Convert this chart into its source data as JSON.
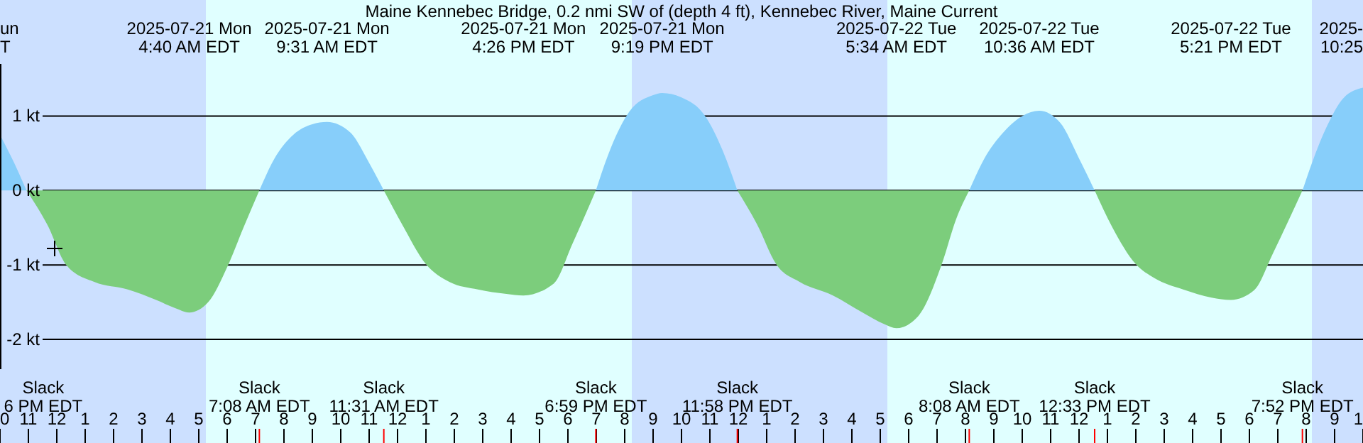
{
  "chart_data": {
    "type": "area",
    "title": "Maine Kennebec Bridge, 0.2 nmi SW of (depth 4 ft), Kennebec River, Maine Current",
    "xlim": [
      "2025-07-20T22:00",
      "2025-07-22T22:00"
    ],
    "ylim": [
      -2.4,
      1.7
    ],
    "yticks": [
      {
        "value": 1,
        "label": "1 kt"
      },
      {
        "value": 0,
        "label": "0 kt"
      },
      {
        "value": -1,
        "label": "-1 kt"
      },
      {
        "value": -2,
        "label": "-2 kt"
      }
    ],
    "xticks": [
      {
        "value": "2025-07-20T22:00",
        "label": "0"
      },
      {
        "value": "2025-07-20T23:00",
        "label": "11"
      },
      {
        "value": "2025-07-21T00:00",
        "label": "12"
      },
      {
        "value": "2025-07-21T01:00",
        "label": "1"
      },
      {
        "value": "2025-07-21T02:00",
        "label": "2"
      },
      {
        "value": "2025-07-21T03:00",
        "label": "3"
      },
      {
        "value": "2025-07-21T04:00",
        "label": "4"
      },
      {
        "value": "2025-07-21T05:00",
        "label": "5"
      },
      {
        "value": "2025-07-21T06:00",
        "label": "6"
      },
      {
        "value": "2025-07-21T07:00",
        "label": "7"
      },
      {
        "value": "2025-07-21T08:00",
        "label": "8"
      },
      {
        "value": "2025-07-21T09:00",
        "label": "9"
      },
      {
        "value": "2025-07-21T10:00",
        "label": "10"
      },
      {
        "value": "2025-07-21T11:00",
        "label": "11"
      },
      {
        "value": "2025-07-21T12:00",
        "label": "12"
      },
      {
        "value": "2025-07-21T13:00",
        "label": "1"
      },
      {
        "value": "2025-07-21T14:00",
        "label": "2"
      },
      {
        "value": "2025-07-21T15:00",
        "label": "3"
      },
      {
        "value": "2025-07-21T16:00",
        "label": "4"
      },
      {
        "value": "2025-07-21T17:00",
        "label": "5"
      },
      {
        "value": "2025-07-21T18:00",
        "label": "6"
      },
      {
        "value": "2025-07-21T19:00",
        "label": "7"
      },
      {
        "value": "2025-07-21T20:00",
        "label": "8"
      },
      {
        "value": "2025-07-21T21:00",
        "label": "9"
      },
      {
        "value": "2025-07-21T22:00",
        "label": "10"
      },
      {
        "value": "2025-07-21T23:00",
        "label": "11"
      },
      {
        "value": "2025-07-22T00:00",
        "label": "12"
      },
      {
        "value": "2025-07-22T01:00",
        "label": "1"
      },
      {
        "value": "2025-07-22T02:00",
        "label": "2"
      },
      {
        "value": "2025-07-22T03:00",
        "label": "3"
      },
      {
        "value": "2025-07-22T04:00",
        "label": "4"
      },
      {
        "value": "2025-07-22T05:00",
        "label": "5"
      },
      {
        "value": "2025-07-22T06:00",
        "label": "6"
      },
      {
        "value": "2025-07-22T07:00",
        "label": "7"
      },
      {
        "value": "2025-07-22T08:00",
        "label": "8"
      },
      {
        "value": "2025-07-22T09:00",
        "label": "9"
      },
      {
        "value": "2025-07-22T10:00",
        "label": "10"
      },
      {
        "value": "2025-07-22T11:00",
        "label": "11"
      },
      {
        "value": "2025-07-22T12:00",
        "label": "12"
      },
      {
        "value": "2025-07-22T13:00",
        "label": "1"
      },
      {
        "value": "2025-07-22T14:00",
        "label": "2"
      },
      {
        "value": "2025-07-22T15:00",
        "label": "3"
      },
      {
        "value": "2025-07-22T16:00",
        "label": "4"
      },
      {
        "value": "2025-07-22T17:00",
        "label": "5"
      },
      {
        "value": "2025-07-22T18:00",
        "label": "6"
      },
      {
        "value": "2025-07-22T19:00",
        "label": "7"
      },
      {
        "value": "2025-07-22T20:00",
        "label": "8"
      },
      {
        "value": "2025-07-22T21:00",
        "label": "9"
      },
      {
        "value": "2025-07-22T22:00",
        "label": "1"
      }
    ],
    "x2lim": [
      "2025-07-20T22:00",
      "2025-07-22T22:00"
    ],
    "x2ticks": [
      {
        "value": "2025-07-21T04:40",
        "label": "2025-07-21 Mon\n4:40 AM EDT"
      },
      {
        "value": "2025-07-21T09:31",
        "label": "2025-07-21 Mon\n9:31 AM EDT"
      },
      {
        "value": "2025-07-21T16:26",
        "label": "2025-07-21 Mon\n4:26 PM EDT"
      },
      {
        "value": "2025-07-21T21:19",
        "label": "2025-07-21 Mon\n9:19 PM EDT"
      },
      {
        "value": "2025-07-22T05:34",
        "label": "2025-07-22 Tue\n5:34 AM EDT"
      },
      {
        "value": "2025-07-22T10:36",
        "label": "2025-07-22 Tue\n10:36 AM EDT"
      },
      {
        "value": "2025-07-22T17:21",
        "label": "2025-07-22 Tue\n5:21 PM EDT"
      }
    ],
    "grid": "y",
    "bands": [
      {
        "axis": "x",
        "from": "2025-07-20T22:00",
        "to": "2025-07-21T05:15",
        "color": "#cce0ff"
      },
      {
        "axis": "x",
        "from": "2025-07-21T05:15",
        "to": "2025-07-21T20:15",
        "color": "#e0ffff"
      },
      {
        "axis": "x",
        "from": "2025-07-21T20:15",
        "to": "2025-07-22T05:15",
        "color": "#cce0ff"
      },
      {
        "axis": "x",
        "from": "2025-07-22T05:15",
        "to": "2025-07-22T20:12",
        "color": "#e0ffff"
      },
      {
        "axis": "x",
        "from": "2025-07-22T20:12",
        "to": "2025-07-22T22:00",
        "color": "#cce0ff"
      }
    ],
    "series": [
      {
        "color": "#87cefa",
        "x": [
          "2025-07-20T22:00",
          "2025-07-20T22:30",
          "2025-07-20T22:56",
          "2025-07-21T00:00",
          "2025-07-21T07:08",
          "2025-07-21T07:40",
          "2025-07-21T08:20",
          "2025-07-21T09:00",
          "2025-07-21T09:31",
          "2025-07-21T10:20",
          "2025-07-21T11:00",
          "2025-07-21T11:31",
          "2025-07-21T15:00",
          "2025-07-21T18:59",
          "2025-07-21T19:30",
          "2025-07-21T20:10",
          "2025-07-21T21:00",
          "2025-07-21T21:19",
          "2025-07-21T22:00",
          "2025-07-21T22:50",
          "2025-07-21T23:30",
          "2025-07-21T23:58",
          "2025-07-22T04:00",
          "2025-07-22T08:08",
          "2025-07-22T08:40",
          "2025-07-22T09:20",
          "2025-07-22T10:00",
          "2025-07-22T10:36",
          "2025-07-22T11:20",
          "2025-07-22T12:00",
          "2025-07-22T12:33",
          "2025-07-22T16:00",
          "2025-07-22T19:52",
          "2025-07-22T20:40",
          "2025-07-22T21:20",
          "2025-07-22T22:00"
        ],
        "values": [
          0.75,
          0.37,
          0,
          null,
          0,
          0.43,
          0.75,
          0.89,
          0.92,
          0.78,
          0.37,
          0,
          null,
          0,
          0.56,
          1.06,
          1.28,
          1.31,
          1.25,
          1.0,
          0.49,
          0,
          null,
          0,
          0.43,
          0.78,
          1.0,
          1.07,
          0.91,
          0.43,
          0,
          null,
          0,
          0.81,
          1.25,
          1.38
        ]
      },
      {
        "color": "#7ccd7c",
        "x": [
          "2025-07-20T22:56",
          "2025-07-20T23:40",
          "2025-07-21T00:20",
          "2025-07-21T01:20",
          "2025-07-21T02:30",
          "2025-07-21T03:30",
          "2025-07-21T04:10",
          "2025-07-21T04:40",
          "2025-07-21T05:20",
          "2025-07-21T06:00",
          "2025-07-21T06:35",
          "2025-07-21T07:08",
          "2025-07-21T09:00",
          "2025-07-21T11:31",
          "2025-07-21T12:10",
          "2025-07-21T13:00",
          "2025-07-21T13:50",
          "2025-07-21T14:50",
          "2025-07-21T15:50",
          "2025-07-21T16:26",
          "2025-07-21T17:30",
          "2025-07-21T18:10",
          "2025-07-21T18:59",
          "2025-07-21T21:00",
          "2025-07-21T23:58",
          "2025-07-22T00:40",
          "2025-07-22T01:20",
          "2025-07-22T02:10",
          "2025-07-22T03:20",
          "2025-07-22T04:20",
          "2025-07-22T05:10",
          "2025-07-22T05:34",
          "2025-07-22T06:20",
          "2025-07-22T07:10",
          "2025-07-22T07:40",
          "2025-07-22T08:08",
          "2025-07-22T10:00",
          "2025-07-22T12:33",
          "2025-07-22T13:10",
          "2025-07-22T14:00",
          "2025-07-22T14:40",
          "2025-07-22T15:40",
          "2025-07-22T16:40",
          "2025-07-22T17:21",
          "2025-07-22T18:10",
          "2025-07-22T18:50",
          "2025-07-22T19:52"
        ],
        "values": [
          0,
          -0.46,
          -1.0,
          -1.23,
          -1.33,
          -1.47,
          -1.58,
          -1.64,
          -1.5,
          -1.03,
          -0.49,
          0,
          null,
          0,
          -0.46,
          -0.99,
          -1.23,
          -1.33,
          -1.39,
          -1.41,
          -1.25,
          -0.71,
          0,
          null,
          0,
          -0.46,
          -0.99,
          -1.23,
          -1.41,
          -1.63,
          -1.8,
          -1.85,
          -1.69,
          -0.99,
          -0.39,
          0,
          null,
          0,
          -0.49,
          -0.99,
          -1.18,
          -1.33,
          -1.44,
          -1.47,
          -1.34,
          -0.84,
          0
        ]
      }
    ],
    "annotations": [
      "un\nT",
      "2025-\n10:25",
      "Slack\n6 PM EDT",
      {
        "text": "Slack\n7:08 AM EDT",
        "x": "2025-07-21T07:08"
      },
      {
        "text": "Slack\n11:31 AM EDT",
        "x": "2025-07-21T11:31"
      },
      {
        "text": "Slack\n6:59 PM EDT",
        "x": "2025-07-21T18:59"
      },
      {
        "text": "Slack\n11:58 PM EDT",
        "x": "2025-07-21T23:58"
      },
      {
        "text": "Slack\n8:08 AM EDT",
        "x": "2025-07-22T08:08"
      },
      {
        "text": "Slack\n12:33 PM EDT",
        "x": "2025-07-22T12:33"
      },
      {
        "text": "Slack\n7:52 PM EDT",
        "x": "2025-07-22T19:52"
      }
    ]
  }
}
